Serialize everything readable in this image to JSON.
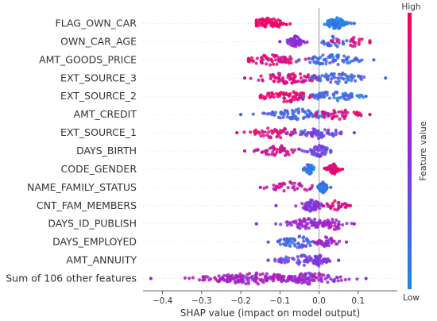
{
  "chart_data": {
    "type": "scatter",
    "subtype": "shap-beeswarm",
    "xlabel": "SHAP value (impact on model output)",
    "xlim": [
      -0.45,
      0.2
    ],
    "xticks": [
      -0.4,
      -0.3,
      -0.2,
      -0.1,
      0.0,
      0.1
    ],
    "xtick_labels": [
      "−0.4",
      "−0.3",
      "−0.2",
      "−0.1",
      "0.0",
      "0.1"
    ],
    "grid": false,
    "colorbar": {
      "title": "Feature value",
      "high_label": "High",
      "low_label": "Low",
      "low_color": "#1E88E5",
      "high_color": "#FF0052"
    },
    "zero_line": 0.0,
    "features": [
      {
        "name": "FLAG_OWN_CAR",
        "min": -0.16,
        "max": 0.09,
        "clusters": [
          {
            "center": -0.13,
            "spread": 0.035,
            "density": 70,
            "value": 0.95
          },
          {
            "center": 0.045,
            "spread": 0.02,
            "density": 80,
            "value": 0.05
          }
        ]
      },
      {
        "name": "OWN_CAR_AGE",
        "min": -0.1,
        "max": 0.13,
        "clusters": [
          {
            "center": -0.06,
            "spread": 0.015,
            "density": 60,
            "value": 0.55
          },
          {
            "center": 0.04,
            "spread": 0.025,
            "density": 30,
            "value": 0.2
          },
          {
            "center": 0.095,
            "spread": 0.03,
            "density": 20,
            "value": 0.9
          }
        ]
      },
      {
        "name": "AMT_GOODS_PRICE",
        "min": -0.18,
        "max": 0.14,
        "clusters": [
          {
            "center": -0.12,
            "spread": 0.05,
            "density": 70,
            "value": 0.85
          },
          {
            "center": 0.03,
            "spread": 0.05,
            "density": 70,
            "value": 0.15
          }
        ]
      },
      {
        "name": "EXT_SOURCE_3",
        "min": -0.19,
        "max": 0.17,
        "clusters": [
          {
            "center": -0.08,
            "spread": 0.06,
            "density": 80,
            "value": 0.85
          },
          {
            "center": 0.05,
            "spread": 0.05,
            "density": 60,
            "value": 0.15
          }
        ]
      },
      {
        "name": "EXT_SOURCE_2",
        "min": -0.15,
        "max": 0.12,
        "clusters": [
          {
            "center": -0.08,
            "spread": 0.05,
            "density": 80,
            "value": 0.9
          },
          {
            "center": 0.04,
            "spread": 0.04,
            "density": 60,
            "value": 0.15
          }
        ]
      },
      {
        "name": "AMT_CREDIT",
        "min": -0.2,
        "max": 0.13,
        "clusters": [
          {
            "center": -0.05,
            "spread": 0.06,
            "density": 80,
            "value": 0.2
          },
          {
            "center": 0.05,
            "spread": 0.04,
            "density": 40,
            "value": 0.85
          }
        ]
      },
      {
        "name": "EXT_SOURCE_1",
        "min": -0.21,
        "max": 0.09,
        "clusters": [
          {
            "center": -0.11,
            "spread": 0.05,
            "density": 50,
            "value": 0.85
          },
          {
            "center": 0.0,
            "spread": 0.04,
            "density": 60,
            "value": 0.35
          }
        ]
      },
      {
        "name": "DAYS_BIRTH",
        "min": -0.19,
        "max": 0.03,
        "clusters": [
          {
            "center": -0.1,
            "spread": 0.04,
            "density": 50,
            "value": 0.75
          },
          {
            "center": 0.0,
            "spread": 0.02,
            "density": 50,
            "value": 0.35
          }
        ]
      },
      {
        "name": "CODE_GENDER",
        "min": -0.04,
        "max": 0.06,
        "clusters": [
          {
            "center": -0.025,
            "spread": 0.01,
            "density": 40,
            "value": 0.1
          },
          {
            "center": 0.035,
            "spread": 0.012,
            "density": 50,
            "value": 0.9
          }
        ]
      },
      {
        "name": "NAME_FAMILY_STATUS",
        "min": -0.15,
        "max": 0.03,
        "clusters": [
          {
            "center": -0.07,
            "spread": 0.04,
            "density": 40,
            "value": 0.75
          },
          {
            "center": 0.01,
            "spread": 0.008,
            "density": 60,
            "value": 0.15
          }
        ]
      },
      {
        "name": "CNT_FAM_MEMBERS",
        "min": -0.11,
        "max": 0.08,
        "clusters": [
          {
            "center": -0.02,
            "spread": 0.02,
            "density": 60,
            "value": 0.45
          },
          {
            "center": 0.04,
            "spread": 0.02,
            "density": 30,
            "value": 0.85
          }
        ]
      },
      {
        "name": "DAYS_ID_PUBLISH",
        "min": -0.16,
        "max": 0.09,
        "clusters": [
          {
            "center": -0.03,
            "spread": 0.04,
            "density": 70,
            "value": 0.55
          },
          {
            "center": 0.04,
            "spread": 0.025,
            "density": 30,
            "value": 0.6
          }
        ]
      },
      {
        "name": "DAYS_EMPLOYED",
        "min": -0.13,
        "max": 0.07,
        "clusters": [
          {
            "center": -0.05,
            "spread": 0.04,
            "density": 60,
            "value": 0.2
          },
          {
            "center": 0.02,
            "spread": 0.02,
            "density": 40,
            "value": 0.55
          }
        ]
      },
      {
        "name": "AMT_ANNUITY",
        "min": -0.13,
        "max": 0.05,
        "clusters": [
          {
            "center": -0.05,
            "spread": 0.04,
            "density": 50,
            "value": 0.35
          },
          {
            "center": 0.0,
            "spread": 0.015,
            "density": 50,
            "value": 0.45
          }
        ]
      },
      {
        "name": "Sum of 106 other features",
        "min": -0.43,
        "max": 0.12,
        "clusters": [
          {
            "center": -0.17,
            "spread": 0.09,
            "density": 150,
            "value": 0.6
          },
          {
            "center": -0.02,
            "spread": 0.06,
            "density": 90,
            "value": 0.55
          }
        ]
      }
    ]
  }
}
